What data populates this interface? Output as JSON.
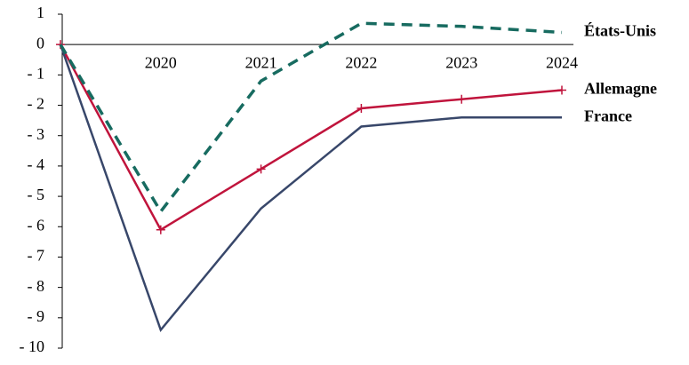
{
  "chart_data": {
    "type": "line",
    "categories": [
      null,
      "2020",
      "2021",
      "2022",
      "2023",
      "2024"
    ],
    "series": [
      {
        "name": "France",
        "color": "#38476a",
        "line_style": "solid",
        "values": [
          0,
          -9.4,
          -5.4,
          -2.7,
          -2.4,
          -2.4
        ]
      },
      {
        "name": "Allemagne",
        "color": "#c0143c",
        "line_style": "solid",
        "marker": "plus",
        "values": [
          0,
          -6.1,
          -4.1,
          -2.1,
          -1.8,
          -1.5
        ]
      },
      {
        "name": "États-Unis",
        "color": "#176b60",
        "line_style": "dashed",
        "values": [
          0,
          -5.5,
          -1.2,
          0.7,
          0.6,
          0.4
        ]
      }
    ],
    "ylim": [
      -10,
      1
    ],
    "yticks": [
      1,
      0,
      {
        "value": -1,
        "label": "- 1"
      },
      {
        "value": -2,
        "label": "- 2"
      },
      {
        "value": -3,
        "label": "- 3"
      },
      {
        "value": -4,
        "label": "- 4"
      },
      {
        "value": -5,
        "label": "- 5"
      },
      {
        "value": -6,
        "label": "- 6"
      },
      {
        "value": -7,
        "label": "- 7"
      },
      {
        "value": -8,
        "label": "- 8"
      },
      {
        "value": -9,
        "label": "- 9"
      },
      {
        "value": -10,
        "label": "- 10"
      }
    ],
    "grid": false
  }
}
